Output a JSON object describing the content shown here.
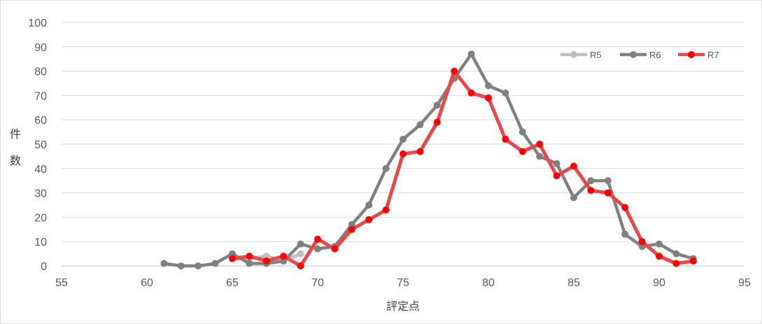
{
  "chart_data": {
    "type": "line",
    "title": "",
    "xlabel": "評定点",
    "ylabel": "件数",
    "xlim": [
      55,
      95
    ],
    "ylim": [
      0,
      100
    ],
    "x_ticks": [
      55,
      60,
      65,
      70,
      75,
      80,
      85,
      90,
      95
    ],
    "y_ticks": [
      0,
      10,
      20,
      30,
      40,
      50,
      60,
      70,
      80,
      90,
      100
    ],
    "grid": "horizontal",
    "legend_position": "top-right",
    "series": [
      {
        "name": "R5",
        "color": "#bfbfbf",
        "x": [
          65,
          66,
          67,
          68,
          69
        ],
        "y": [
          3,
          3,
          4,
          2,
          5
        ]
      },
      {
        "name": "R6",
        "color": "#808080",
        "x": [
          61,
          62,
          63,
          64,
          65,
          66,
          67,
          68,
          69,
          70,
          71,
          72,
          73,
          74,
          75,
          76,
          77,
          78,
          79,
          80,
          81,
          82,
          83,
          84,
          85,
          86,
          87,
          88,
          89,
          90,
          91,
          92
        ],
        "y": [
          1,
          0,
          0,
          1,
          5,
          1,
          1,
          2,
          9,
          7,
          8,
          17,
          25,
          40,
          52,
          58,
          66,
          77,
          87,
          74,
          71,
          55,
          45,
          42,
          28,
          35,
          35,
          13,
          8,
          9,
          5,
          3
        ]
      },
      {
        "name": "R7",
        "color": "#ff0000",
        "x": [
          65,
          66,
          67,
          68,
          69,
          70,
          71,
          72,
          73,
          74,
          75,
          76,
          77,
          78,
          79,
          80,
          81,
          82,
          83,
          84,
          85,
          86,
          87,
          88,
          89,
          90,
          91,
          92
        ],
        "y": [
          3,
          4,
          2,
          4,
          0,
          11,
          7,
          15,
          19,
          23,
          46,
          47,
          59,
          80,
          71,
          69,
          52,
          47,
          50,
          37,
          41,
          31,
          30,
          24,
          10,
          4,
          1,
          2
        ]
      }
    ]
  }
}
